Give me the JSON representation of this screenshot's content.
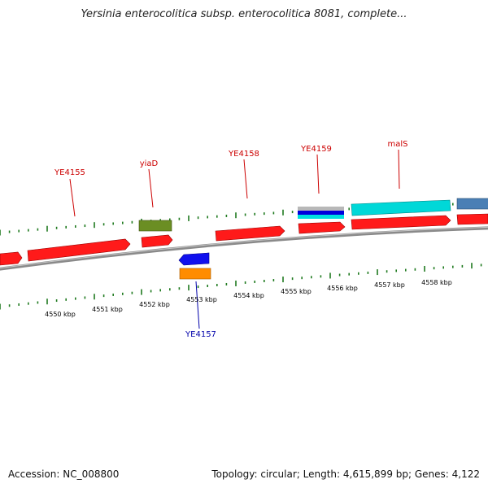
{
  "title": "Yersinia enterocolitica subsp. enterocolitica 8081, complete...",
  "footer": {
    "accession": "Accession: NC_008800",
    "topology": "Topology: circular; Length: 4,615,899 bp; Genes: 4,122"
  },
  "colors": {
    "forward_gene": "#ff0000",
    "reverse_gene": "#0000ff",
    "label_forward": "#cc0000",
    "label_reverse": "#0000aa",
    "tick": "#1f7a1f",
    "backbone": "#8a8a8a",
    "cds_olive": "#6b8e23",
    "cds_orange": "#ff8c00",
    "cds_cyan": "#00d8d8",
    "cds_steel": "#4a7fb5",
    "cds_gray": "#b0b0b0"
  },
  "scale_labels": [
    "4550 kbp",
    "4551 kbp",
    "4552 kbp",
    "4553 kbp",
    "4554 kbp",
    "4555 kbp",
    "4556 kbp",
    "4557 kbp",
    "4558 kbp"
  ],
  "gene_labels": [
    {
      "name": "YE4155",
      "strand": "forward"
    },
    {
      "name": "yiaD",
      "strand": "forward"
    },
    {
      "name": "YE4158",
      "strand": "forward"
    },
    {
      "name": "YE4159",
      "strand": "forward"
    },
    {
      "name": "malS",
      "strand": "forward"
    },
    {
      "name": "YE4157",
      "strand": "reverse"
    }
  ]
}
